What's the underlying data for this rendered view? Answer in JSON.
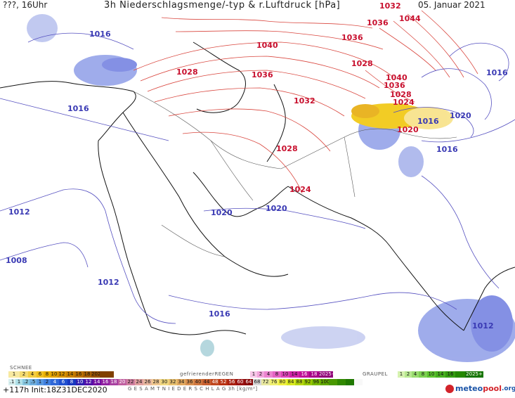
{
  "header": {
    "left": "???, 16Uhr",
    "title": "3h Niederschlagsmenge/-typ & r.Luftdruck [hPa]",
    "date": "05. Januar 2021"
  },
  "pressure_labels": [
    "1032",
    "1044",
    "1036",
    "1036",
    "1040",
    "1028",
    "1028",
    "1036",
    "1040",
    "1036",
    "1028",
    "1032",
    "1024",
    "1020",
    "1028",
    "1024",
    "1016",
    "1016",
    "1016",
    "1020",
    "1016",
    "1016",
    "1012",
    "1020",
    "1020",
    "1008",
    "1012",
    "1016",
    "1012"
  ],
  "legend": {
    "snow_label": "SCHNEE",
    "snow": [
      "1",
      "2",
      "4",
      "6",
      "8",
      "10",
      "12",
      "14",
      "16",
      "18",
      "2025+",
      ""
    ],
    "freezing_rain_label": "gefrierenderREGEN",
    "freezing_rain": [
      "1",
      "2",
      "4",
      "8",
      "10",
      "14",
      "16",
      "18",
      "2025+"
    ],
    "graupel_label": "GRAUPEL",
    "graupel": [
      "1",
      "2",
      "4",
      "8",
      "10",
      "14",
      "16",
      "",
      "2025+"
    ],
    "total_label": "G E S A M T N I E D E R S C H L A G   3h   [kg/m²]",
    "total": [
      ".1",
      "1",
      ".2",
      ".5",
      "1",
      "2",
      "4",
      "6",
      "8",
      "10",
      "12",
      "14",
      "16",
      "18",
      "20",
      "22",
      "24",
      "26",
      "28",
      "30",
      "32",
      "34",
      "36",
      "40",
      "44",
      "48",
      "52",
      "56",
      "60",
      "64",
      "68",
      "72",
      "76",
      "80",
      "84",
      "88",
      "92",
      "96",
      "100",
      "",
      "",
      "",
      ""
    ]
  },
  "footer": {
    "run": "+117h  Init:18Z31DEC2020",
    "logo_part1": "meteo",
    "logo_part2": "pool",
    "logo_part3": ".org"
  },
  "colors": {
    "high_isobar": "#d9463e",
    "low_isobar": "#5550c0",
    "snow": "#f0c400",
    "rain": "#8f9ee8"
  }
}
